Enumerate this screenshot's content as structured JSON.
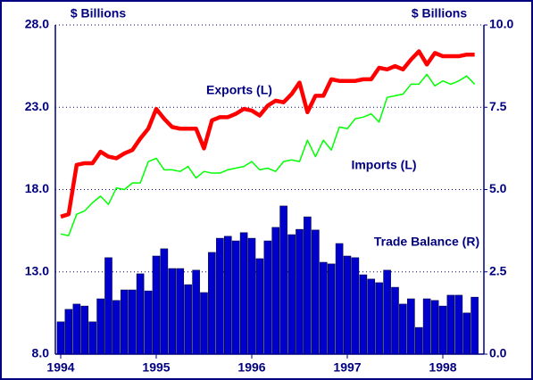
{
  "chart_data": {
    "type": "line",
    "ylabel": "$ Billions",
    "y2label": "$ Billions",
    "xlim": [
      1993.944,
      1998.43
    ],
    "xticks": [
      1994,
      1995,
      1996,
      1997,
      1998
    ],
    "ylim": [
      8,
      28
    ],
    "yticks": [
      {
        "value": 8,
        "label": "8.0"
      },
      {
        "value": 13,
        "label": "13.0"
      },
      {
        "value": 18,
        "label": "18.0"
      },
      {
        "value": 23,
        "label": "23.0"
      },
      {
        "value": 28,
        "label": "28.0"
      }
    ],
    "y2lim": [
      0,
      10
    ],
    "y2ticks": [
      {
        "value": 0,
        "label": "0.0"
      },
      2.5,
      {
        "value": 5,
        "label": "5.0"
      },
      7.5,
      {
        "value": 10,
        "label": "10.0"
      }
    ],
    "grid": true,
    "x": [
      1994,
      1994.083,
      1994.167,
      1994.25,
      1994.333,
      1994.417,
      1994.5,
      1994.583,
      1994.667,
      1994.75,
      1994.833,
      1994.917,
      1995,
      1995.083,
      1995.167,
      1995.25,
      1995.333,
      1995.417,
      1995.5,
      1995.583,
      1995.667,
      1995.75,
      1995.833,
      1995.917,
      1996,
      1996.083,
      1996.167,
      1996.25,
      1996.333,
      1996.417,
      1996.5,
      1996.583,
      1996.667,
      1996.75,
      1996.833,
      1996.917,
      1997,
      1997.083,
      1997.167,
      1997.25,
      1997.333,
      1997.417,
      1997.5,
      1997.583,
      1997.667,
      1997.75,
      1997.833,
      1997.917,
      1998,
      1998.083,
      1998.167,
      1998.25,
      1998.333
    ],
    "series": [
      {
        "name": "Trade Balance (R)",
        "type": "bar",
        "axis": "y2",
        "color": "#0000cc",
        "values": [
          0.98,
          1.36,
          1.52,
          1.46,
          0.98,
          1.68,
          2.93,
          1.63,
          1.95,
          1.95,
          2.44,
          1.92,
          2.98,
          3.2,
          2.6,
          2.6,
          2.11,
          2.55,
          1.87,
          3.09,
          3.52,
          3.58,
          3.44,
          3.69,
          3.52,
          2.9,
          3.44,
          3.85,
          4.5,
          3.63,
          3.79,
          4.17,
          3.77,
          2.79,
          2.74,
          3.36,
          2.98,
          2.93,
          2.41,
          2.28,
          2.17,
          2.55,
          2.03,
          1.52,
          1.68,
          0.81,
          1.68,
          1.63,
          1.46,
          1.79,
          1.79,
          1.25,
          1.73
        ]
      },
      {
        "name": "Imports (L)",
        "type": "line",
        "color": "#00ff00",
        "values": [
          15.3,
          15.2,
          16.5,
          16.7,
          17.2,
          17.6,
          17.1,
          18.1,
          18.0,
          18.4,
          18.4,
          19.7,
          19.9,
          19.2,
          19.2,
          19.1,
          19.4,
          18.7,
          19.1,
          19.0,
          19.0,
          19.2,
          19.3,
          19.4,
          19.7,
          19.2,
          19.3,
          19.1,
          19.7,
          19.8,
          19.7,
          21.0,
          20.0,
          21.0,
          20.4,
          21.8,
          21.7,
          22.3,
          22.4,
          22.6,
          22.1,
          23.6,
          23.7,
          23.8,
          24.4,
          24.4,
          25.0,
          24.3,
          24.6,
          24.4,
          24.6,
          24.9,
          24.4
        ]
      },
      {
        "name": "Exports (L)",
        "type": "line",
        "color": "#ff0000",
        "values": [
          16.35,
          16.5,
          19.5,
          19.6,
          19.6,
          20.3,
          20.0,
          19.9,
          20.2,
          20.4,
          21.1,
          21.7,
          22.9,
          22.3,
          21.8,
          21.7,
          21.7,
          21.7,
          20.5,
          22.2,
          22.4,
          22.4,
          22.6,
          22.9,
          22.8,
          22.5,
          23.1,
          23.4,
          23.3,
          23.8,
          24.5,
          22.7,
          23.7,
          23.7,
          24.7,
          24.6,
          24.6,
          24.6,
          24.7,
          24.7,
          25.4,
          25.3,
          25.5,
          25.3,
          25.9,
          26.4,
          25.6,
          26.3,
          26.1,
          26.1,
          26.1,
          26.2,
          26.2
        ]
      }
    ]
  }
}
